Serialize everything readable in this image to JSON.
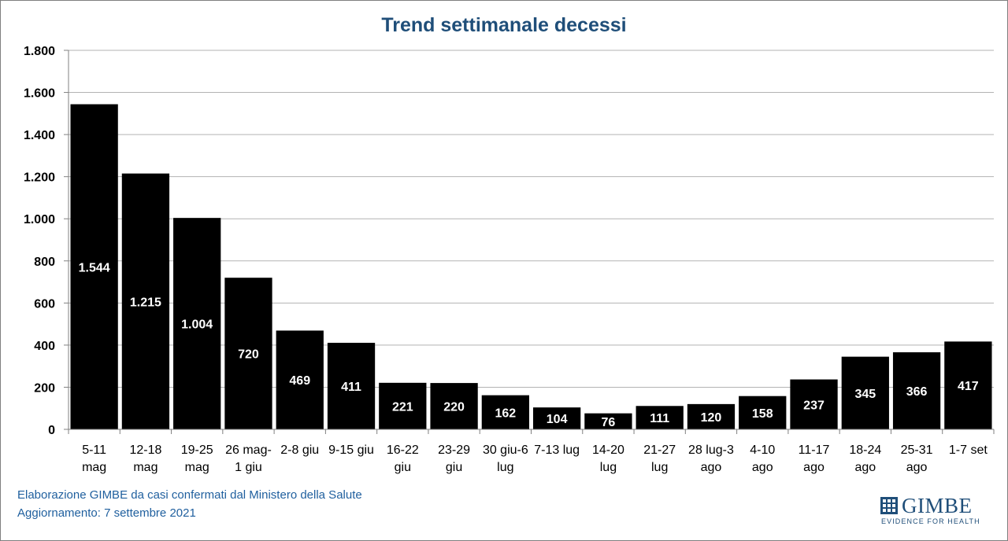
{
  "chart_data": {
    "type": "bar",
    "title": "Trend settimanale decessi",
    "categories": [
      [
        "5-11",
        "mag"
      ],
      [
        "12-18",
        "mag"
      ],
      [
        "19-25",
        "mag"
      ],
      [
        "26 mag-",
        "1 giu"
      ],
      [
        "2-8 giu"
      ],
      [
        "9-15 giu"
      ],
      [
        "16-22",
        "giu"
      ],
      [
        "23-29",
        "giu"
      ],
      [
        "30 giu-6",
        "lug"
      ],
      [
        "7-13 lug"
      ],
      [
        "14-20",
        "lug"
      ],
      [
        "21-27",
        "lug"
      ],
      [
        "28 lug-3",
        "ago"
      ],
      [
        "4-10",
        "ago"
      ],
      [
        "11-17",
        "ago"
      ],
      [
        "18-24",
        "ago"
      ],
      [
        "25-31",
        "ago"
      ],
      [
        "1-7 set"
      ]
    ],
    "values": [
      1544,
      1215,
      1004,
      720,
      469,
      411,
      221,
      220,
      162,
      104,
      76,
      111,
      120,
      158,
      237,
      345,
      366,
      417
    ],
    "data_labels": [
      "1.544",
      "1.215",
      "1.004",
      "720",
      "469",
      "411",
      "221",
      "220",
      "162",
      "104",
      "76",
      "111",
      "120",
      "158",
      "237",
      "345",
      "366",
      "417"
    ],
    "y_ticks": [
      0,
      200,
      400,
      600,
      800,
      1000,
      1200,
      1400,
      1600,
      1800
    ],
    "y_tick_labels": [
      "0",
      "200",
      "400",
      "600",
      "800",
      "1.000",
      "1.200",
      "1.400",
      "1.600",
      "1.800"
    ],
    "ylim": [
      0,
      1800
    ],
    "xlabel": "",
    "ylabel": "",
    "grid": true,
    "legend": "none",
    "colors": {
      "bar": "#000000",
      "title": "#1f4e79",
      "footer": "#1f5f9e",
      "grid": "#b3b3b3"
    }
  },
  "footer": {
    "line1": "Elaborazione GIMBE da casi confermati dal Ministero della Salute",
    "line2": "Aggiornamento: 7 settembre 2021"
  },
  "logo": {
    "name": "GIMBE",
    "tagline": "EVIDENCE FOR HEALTH"
  }
}
